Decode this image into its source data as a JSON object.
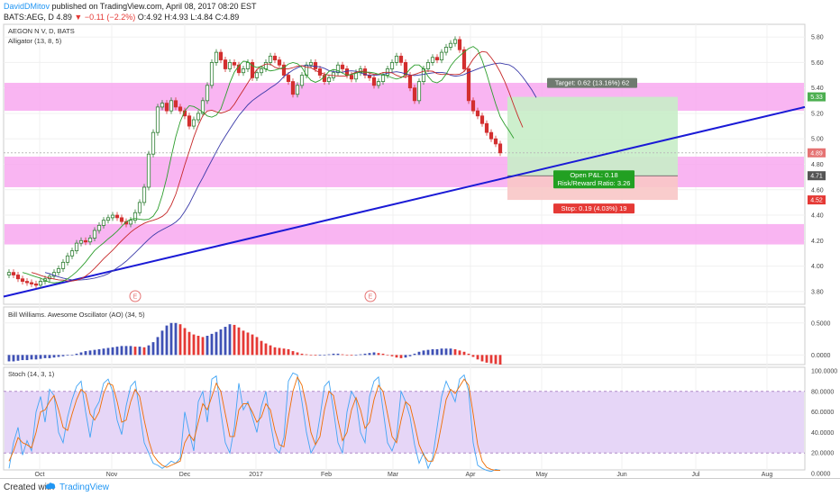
{
  "header": {
    "author": "DavidDMitov",
    "published": "published on TradingView.com, April 08, 2017 08:20 EST",
    "symbol": "BATS:AEG, D",
    "last": "4.89",
    "change": "▼ −0.11 (−2.2%)",
    "ohlc": "O:4.92 H:4.93 L:4.84 C:4.89"
  },
  "legend": {
    "title": "AEGON N V, D, BATS",
    "indicator": "Alligator (13, 8, 5)"
  },
  "ao_label": "Bill Williams. Awesome Oscillator (AO) (34, 5)",
  "stoch_label": "Stoch (14, 3, 1)",
  "footer": {
    "created": "Created with",
    "brand": "TradingView"
  },
  "colors": {
    "up": "#2e7d32",
    "down": "#d32f2f",
    "zone": "#f8a8f0",
    "trendline": "#1a1ad6",
    "target_zone": "#c8edc8",
    "stop_zone": "#f8c6c6",
    "stoch_band": "#e6d6f7"
  },
  "chart_data": [
    {
      "type": "candlestick",
      "title": "AEGON N V, D, BATS",
      "ylim": [
        3.7,
        5.9
      ],
      "y_ticks": [
        "5.80",
        "5.60",
        "5.40",
        "5.20",
        "5.00",
        "4.80",
        "4.60",
        "4.40",
        "4.20",
        "4.00",
        "3.80"
      ],
      "x_ticks": [
        "Oct",
        "Nov",
        "Dec",
        "2017",
        "Feb",
        "Mar",
        "Apr",
        "May",
        "Jun",
        "Jul",
        "Aug"
      ],
      "close": [
        3.95,
        3.93,
        3.9,
        3.88,
        3.87,
        3.86,
        3.85,
        3.88,
        3.9,
        3.92,
        3.95,
        3.98,
        4.03,
        4.08,
        4.12,
        4.18,
        4.2,
        4.19,
        4.22,
        4.28,
        4.32,
        4.36,
        4.38,
        4.4,
        4.38,
        4.35,
        4.33,
        4.36,
        4.42,
        4.5,
        4.62,
        4.88,
        5.05,
        5.25,
        5.28,
        5.22,
        5.3,
        5.25,
        5.22,
        5.18,
        5.1,
        5.15,
        5.2,
        5.3,
        5.42,
        5.6,
        5.68,
        5.62,
        5.55,
        5.6,
        5.58,
        5.52,
        5.55,
        5.6,
        5.48,
        5.52,
        5.55,
        5.6,
        5.65,
        5.62,
        5.58,
        5.5,
        5.45,
        5.35,
        5.42,
        5.5,
        5.58,
        5.6,
        5.55,
        5.5,
        5.45,
        5.48,
        5.52,
        5.58,
        5.55,
        5.5,
        5.47,
        5.52,
        5.55,
        5.5,
        5.48,
        5.42,
        5.45,
        5.5,
        5.55,
        5.6,
        5.65,
        5.6,
        5.5,
        5.4,
        5.3,
        5.45,
        5.55,
        5.6,
        5.64,
        5.62,
        5.68,
        5.72,
        5.75,
        5.78,
        5.7,
        5.55,
        5.3,
        5.22,
        5.18,
        5.12,
        5.05,
        5.0,
        4.96,
        4.89
      ],
      "last_close": 4.89,
      "lines": {
        "target_marker": 5.33,
        "last_price": 4.89,
        "entry": 4.71,
        "stop_level": 4.52
      },
      "zones": [
        [
          5.22,
          5.44
        ],
        [
          4.62,
          4.86
        ],
        [
          4.17,
          4.33
        ]
      ],
      "trendline": {
        "from": [
          0,
          3.76
        ],
        "to": [
          130,
          5.25
        ]
      },
      "position": {
        "target": "Target: 0.62 (13.16%) 62",
        "open": "Open P&L: 0.18",
        "rr": "Risk/Reward Ratio: 3.26",
        "stop": "Stop: 0.19 (4.03%) 19",
        "entry": 4.71,
        "target_price": 5.33,
        "stop_price": 4.52
      },
      "price_labels": [
        "5.33",
        "4.89",
        "4.71",
        "4.52"
      ],
      "event_labels": [
        "E",
        "E"
      ]
    },
    {
      "type": "bar",
      "title": "Bill Williams. Awesome Oscillator (AO) (34, 5)",
      "ylim": [
        -0.15,
        0.75
      ],
      "y_ticks": [
        "0.5000",
        "0.0000"
      ],
      "values": [
        -0.1,
        -0.1,
        -0.09,
        -0.08,
        -0.08,
        -0.07,
        -0.07,
        -0.06,
        -0.05,
        -0.05,
        -0.04,
        -0.03,
        -0.02,
        -0.01,
        0.0,
        0.02,
        0.04,
        0.06,
        0.07,
        0.08,
        0.09,
        0.1,
        0.11,
        0.12,
        0.13,
        0.14,
        0.14,
        0.14,
        0.13,
        0.13,
        0.12,
        0.15,
        0.2,
        0.28,
        0.38,
        0.46,
        0.5,
        0.5,
        0.48,
        0.42,
        0.36,
        0.32,
        0.3,
        0.28,
        0.3,
        0.33,
        0.36,
        0.4,
        0.44,
        0.48,
        0.47,
        0.43,
        0.38,
        0.35,
        0.32,
        0.28,
        0.22,
        0.18,
        0.15,
        0.12,
        0.11,
        0.1,
        0.09,
        0.06,
        0.04,
        0.02,
        0.01,
        0.0,
        -0.01,
        -0.01,
        0.0,
        0.01,
        0.02,
        0.02,
        0.01,
        0.0,
        -0.01,
        0.0,
        0.01,
        0.02,
        0.03,
        0.04,
        0.03,
        0.02,
        0.0,
        -0.02,
        -0.04,
        -0.05,
        -0.04,
        -0.02,
        0.02,
        0.05,
        0.07,
        0.08,
        0.09,
        0.09,
        0.1,
        0.1,
        0.1,
        0.09,
        0.07,
        0.05,
        0.02,
        -0.03,
        -0.07,
        -0.1,
        -0.12,
        -0.13,
        -0.14,
        -0.15
      ]
    },
    {
      "type": "line",
      "title": "Stoch (14, 3, 1)",
      "ylim": [
        0,
        100
      ],
      "y_ticks": [
        "100.0000",
        "80.0000",
        "60.0000",
        "40.0000",
        "20.0000",
        "0.0000"
      ],
      "band": [
        20,
        80
      ],
      "series": [
        {
          "values": [
            5,
            30,
            45,
            18,
            32,
            22,
            60,
            75,
            50,
            82,
            76,
            40,
            30,
            55,
            72,
            85,
            90,
            60,
            35,
            62,
            70,
            88,
            92,
            80,
            52,
            38,
            66,
            85,
            90,
            60,
            30,
            20,
            10,
            8,
            5,
            8,
            12,
            10,
            15,
            60,
            40,
            22,
            70,
            80,
            50,
            92,
            95,
            60,
            30,
            20,
            45,
            88,
            62,
            70,
            55,
            40,
            65,
            80,
            50,
            25,
            20,
            35,
            90,
            98,
            96,
            70,
            40,
            20,
            28,
            55,
            85,
            90,
            62,
            30,
            20,
            60,
            80,
            72,
            40,
            30,
            75,
            90,
            94,
            62,
            30,
            22,
            35,
            80,
            70,
            55,
            28,
            10,
            20,
            5,
            15,
            45,
            75,
            90,
            80,
            70,
            92,
            96,
            80,
            30,
            8,
            5,
            3,
            2,
            4,
            3
          ]
        },
        {
          "values": [
            12,
            22,
            35,
            30,
            28,
            25,
            40,
            60,
            62,
            70,
            76,
            62,
            45,
            42,
            58,
            72,
            82,
            78,
            58,
            52,
            60,
            78,
            88,
            86,
            70,
            50,
            52,
            70,
            82,
            75,
            52,
            32,
            18,
            12,
            8,
            6,
            8,
            10,
            12,
            30,
            38,
            32,
            50,
            68,
            62,
            75,
            88,
            80,
            58,
            36,
            36,
            62,
            68,
            68,
            60,
            50,
            55,
            68,
            62,
            42,
            28,
            26,
            55,
            80,
            94,
            86,
            66,
            40,
            28,
            36,
            62,
            80,
            76,
            52,
            32,
            40,
            62,
            74,
            62,
            44,
            50,
            72,
            86,
            80,
            58,
            36,
            30,
            52,
            70,
            66,
            48,
            28,
            18,
            12,
            12,
            25,
            48,
            72,
            82,
            78,
            85,
            92,
            86,
            58,
            28,
            12,
            6,
            4,
            3,
            3
          ]
        }
      ]
    }
  ]
}
